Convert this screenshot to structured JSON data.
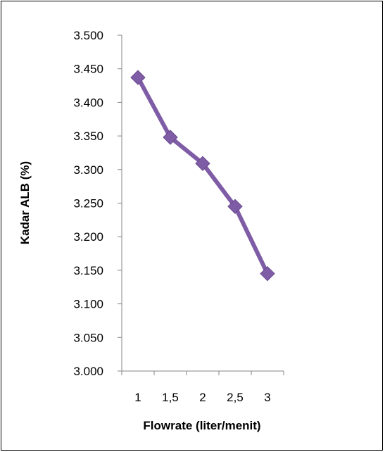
{
  "chart_data": {
    "type": "line",
    "xlabel": "Flowrate (liter/menit)",
    "ylabel": "Kadar ALB (%)",
    "categories": [
      "1",
      "1,5",
      "2",
      "2,5",
      "3"
    ],
    "series": [
      {
        "values": [
          3.437,
          3.348,
          3.309,
          3.245,
          3.145
        ],
        "color": "#7F5CA6"
      }
    ],
    "ylim": [
      3.0,
      3.5
    ],
    "yticks": [
      "3.000",
      "3.050",
      "3.100",
      "3.150",
      "3.200",
      "3.250",
      "3.300",
      "3.350",
      "3.400",
      "3.450",
      "3.500"
    ],
    "grid": false,
    "legend": "none",
    "marker": "diamond"
  }
}
